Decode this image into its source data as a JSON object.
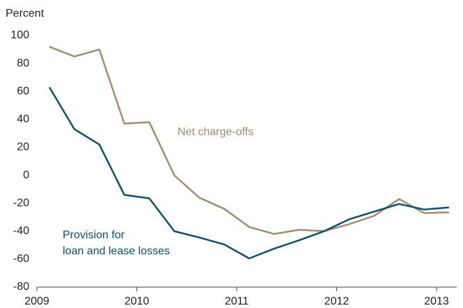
{
  "chart_data": {
    "type": "line",
    "y_axis_label": "Percent",
    "x": [
      2009.125,
      2009.375,
      2009.625,
      2009.875,
      2010.125,
      2010.375,
      2010.625,
      2010.875,
      2011.125,
      2011.375,
      2011.625,
      2011.875,
      2012.125,
      2012.375,
      2012.625,
      2012.875,
      2013.125
    ],
    "series": [
      {
        "color": "#a38b70",
        "values": [
          92,
          85,
          90,
          37,
          38,
          0,
          -16,
          -24,
          -37,
          -42,
          -39,
          -40,
          -35,
          -29,
          -17,
          -27,
          -26.5
        ]
      },
      {
        "color": "#0e4d6e",
        "values": [
          63,
          33,
          22,
          -14,
          -16.5,
          -40,
          -44.5,
          -49.5,
          -59.5,
          -52.5,
          -46.5,
          -40,
          -31.5,
          -26,
          -20.5,
          -24.5,
          -23
        ]
      }
    ],
    "annotations": [
      {
        "series": 0,
        "lines": [
          "Net charge-offs"
        ]
      },
      {
        "series": 1,
        "lines": [
          "Provision for",
          "loan and lease losses"
        ]
      }
    ],
    "xlim": [
      2009,
      2013.2
    ],
    "xticks": [
      2009,
      2010,
      2011,
      2012,
      2013
    ],
    "ylim": [
      -80,
      100
    ],
    "yticks": [
      -80,
      -60,
      -40,
      -20,
      0,
      20,
      40,
      60,
      80,
      100
    ],
    "grid": false
  }
}
